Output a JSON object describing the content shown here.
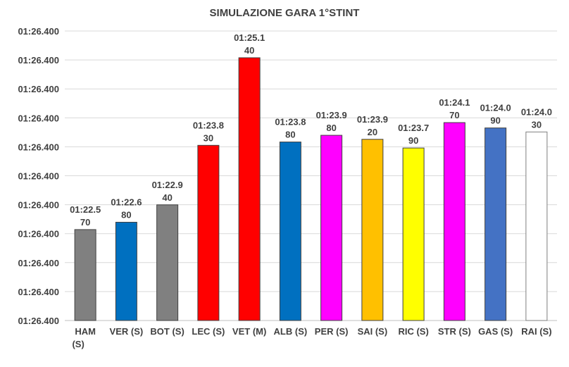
{
  "chart_data": {
    "type": "bar",
    "title": "SIMULAZIONE GARA 1°STINT",
    "xlabel": "",
    "ylabel": "",
    "ylim_seconds": [
      81.21,
      85.54
    ],
    "grid": true,
    "y_tick_labels": [
      "01:26.400",
      "01:26.400",
      "01:26.400",
      "01:26.400",
      "01:26.400",
      "01:26.400",
      "01:26.400",
      "01:26.400",
      "01:26.400",
      "01:26.400",
      "01:26.400"
    ],
    "categories": [
      "HAM (S)",
      "VER (S)",
      "BOT (S)",
      "LEC (S)",
      "VET (M)",
      "ALB (S)",
      "PER (S)",
      "SAI (S)",
      "RIC (S)",
      "STR (S)",
      "GAS (S)",
      "RAI (S)"
    ],
    "values_seconds": [
      82.57,
      82.68,
      82.94,
      83.83,
      85.14,
      83.88,
      83.98,
      83.92,
      83.79,
      84.17,
      84.09,
      84.03
    ],
    "data_labels": [
      [
        "01:22.5",
        "70"
      ],
      [
        "01:22.6",
        "80"
      ],
      [
        "01:22.9",
        "40"
      ],
      [
        "01:23.8",
        "30"
      ],
      [
        "01:25.1",
        "40"
      ],
      [
        "01:23.8",
        "80"
      ],
      [
        "01:23.9",
        "80"
      ],
      [
        "01:23.9",
        "20"
      ],
      [
        "01:23.7",
        "90"
      ],
      [
        "01:24.1",
        "70"
      ],
      [
        "01:24.0",
        "90"
      ],
      [
        "01:24.0",
        "30"
      ]
    ],
    "colors": [
      "#808080",
      "#0070C0",
      "#808080",
      "#FF0000",
      "#FF0000",
      "#0070C0",
      "#FF00FF",
      "#FFC000",
      "#FFFF00",
      "#FF00FF",
      "#4472C4",
      "#FFFFFF"
    ]
  }
}
